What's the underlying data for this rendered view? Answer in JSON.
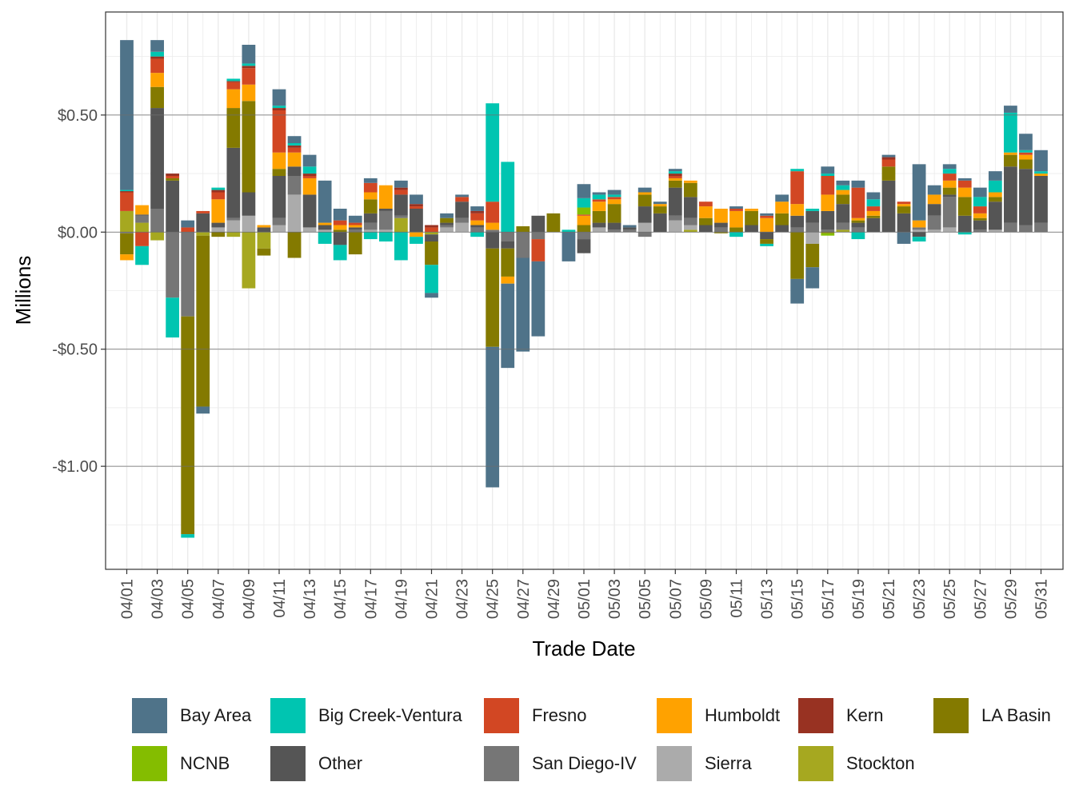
{
  "chart_data": {
    "type": "bar",
    "stacked": true,
    "title": "",
    "xlabel": "Trade Date",
    "ylabel": "Millions",
    "ylim": [
      -1.44,
      0.94
    ],
    "y_ticks": [
      0.5,
      0.0,
      -0.5,
      -1.0
    ],
    "y_tick_labels": [
      "$0.50",
      "$0.00",
      "-$0.50",
      "-$1.00"
    ],
    "grid": true,
    "legend_position": "bottom",
    "x_tick_labels": [
      "04/01",
      "04/03",
      "04/05",
      "04/07",
      "04/09",
      "04/11",
      "04/13",
      "04/15",
      "04/17",
      "04/19",
      "04/21",
      "04/23",
      "04/25",
      "04/27",
      "04/29",
      "05/01",
      "05/03",
      "05/05",
      "05/07",
      "05/09",
      "05/11",
      "05/13",
      "05/15",
      "05/17",
      "05/19",
      "05/21",
      "05/23",
      "05/25",
      "05/27",
      "05/29",
      "05/31"
    ],
    "categories": [
      "04/01",
      "04/02",
      "04/03",
      "04/04",
      "04/05",
      "04/06",
      "04/07",
      "04/08",
      "04/09",
      "04/10",
      "04/11",
      "04/12",
      "04/13",
      "04/14",
      "04/15",
      "04/16",
      "04/17",
      "04/18",
      "04/19",
      "04/20",
      "04/21",
      "04/22",
      "04/23",
      "04/24",
      "04/25",
      "04/26",
      "04/27",
      "04/28",
      "04/29",
      "04/30",
      "05/01",
      "05/02",
      "05/03",
      "05/04",
      "05/05",
      "05/06",
      "05/07",
      "05/08",
      "05/09",
      "05/10",
      "05/11",
      "05/12",
      "05/13",
      "05/14",
      "05/15",
      "05/16",
      "05/17",
      "05/18",
      "05/19",
      "05/20",
      "05/21",
      "05/22",
      "05/23",
      "05/24",
      "05/25",
      "05/26",
      "05/27",
      "05/28",
      "05/29",
      "05/30",
      "05/31"
    ],
    "series": [
      {
        "name": "Stockton",
        "color": "#A6A820",
        "values": [
          0.09,
          0.04,
          -0.035,
          0,
          0,
          -0.015,
          0,
          -0.02,
          -0.24,
          -0.07,
          0,
          0,
          0,
          0,
          0,
          0,
          0,
          0,
          0.06,
          0,
          -0.01,
          0,
          0,
          0,
          0,
          0,
          0,
          0,
          0,
          0,
          0,
          0,
          0,
          0,
          0,
          0,
          0,
          0.01,
          0,
          0,
          0,
          0,
          0,
          0,
          0,
          0,
          0,
          0.01,
          0,
          0,
          0,
          0,
          0,
          0,
          0,
          0,
          0,
          0,
          0,
          0,
          0
        ]
      },
      {
        "name": "Sierra",
        "color": "#ABABAB",
        "values": [
          0,
          0,
          0,
          0,
          0,
          0,
          0.02,
          0.05,
          0.07,
          0,
          0.03,
          0.16,
          0.02,
          0.01,
          0,
          0,
          0.01,
          0.01,
          0,
          0,
          0,
          0.02,
          0.04,
          0,
          0,
          0,
          0,
          0,
          0,
          0,
          0,
          0.02,
          0,
          0,
          0.04,
          0,
          0.05,
          0.02,
          0,
          0,
          0,
          0,
          0,
          0,
          0,
          -0.05,
          0,
          0,
          0,
          0,
          0,
          0,
          0.01,
          0.01,
          0.02,
          0,
          0,
          0.01,
          0,
          0,
          0
        ]
      },
      {
        "name": "San Diego-IV",
        "color": "#767676",
        "values": [
          -0.005,
          0.03,
          0.1,
          -0.28,
          -0.36,
          0,
          0,
          0.01,
          0,
          0,
          0.03,
          0.08,
          0,
          0,
          0,
          0.01,
          0.03,
          0.08,
          0.01,
          0,
          0,
          0.01,
          0.02,
          0.02,
          0.01,
          -0.04,
          -0.11,
          -0.03,
          0,
          0,
          -0.03,
          0,
          0.01,
          0.01,
          -0.02,
          0,
          0.02,
          0.03,
          0,
          0.02,
          0,
          0,
          0,
          0,
          0.02,
          0.04,
          0.01,
          0.03,
          0.02,
          0,
          0,
          0,
          0.01,
          0.06,
          0.13,
          0,
          0.01,
          0,
          0.04,
          0.03,
          0.04
        ]
      },
      {
        "name": "Other",
        "color": "#555555",
        "values": [
          0,
          0.005,
          0.43,
          0.22,
          0,
          0.08,
          0.02,
          0.3,
          0.1,
          0.02,
          0.18,
          0.04,
          0.14,
          0.02,
          -0.055,
          0.01,
          0.04,
          0.01,
          0.09,
          0.1,
          -0.03,
          0.01,
          0.07,
          0.01,
          -0.07,
          -0.03,
          0,
          0.07,
          0,
          0,
          -0.06,
          0.02,
          0.03,
          0.01,
          0.07,
          0.08,
          0.12,
          0.09,
          0.03,
          0.02,
          0,
          0.03,
          -0.03,
          0.03,
          0.05,
          0.05,
          0.08,
          0.08,
          0.02,
          0.06,
          0.22,
          0.08,
          -0.02,
          0.05,
          0.01,
          0.07,
          0.04,
          0.12,
          0.24,
          0.24,
          0.2
        ]
      },
      {
        "name": "LA Basin",
        "color": "#847A00",
        "values": [
          -0.09,
          0,
          0.09,
          0.01,
          -0.93,
          -0.73,
          -0.02,
          0.17,
          0.39,
          -0.03,
          0.03,
          -0.11,
          0,
          0,
          0.01,
          -0.095,
          0.06,
          0,
          0,
          0,
          -0.1,
          0.02,
          0,
          0,
          -0.42,
          -0.12,
          0.025,
          0,
          0.08,
          0,
          0.03,
          0.05,
          0.08,
          0,
          0.05,
          0.03,
          0.03,
          0.06,
          0.03,
          -0.005,
          0.02,
          0.06,
          -0.02,
          0.05,
          -0.2,
          -0.1,
          -0.005,
          0.04,
          0.01,
          0.01,
          0.06,
          0.03,
          0,
          0,
          0.03,
          0.08,
          0.01,
          0.02,
          0.05,
          0.04,
          0
        ]
      },
      {
        "name": "Humboldt",
        "color": "#FFA200",
        "values": [
          -0.025,
          0.04,
          0.06,
          0,
          0,
          0,
          0.1,
          0.08,
          0.07,
          0.01,
          0.07,
          0.06,
          0.07,
          0.01,
          0.02,
          0.01,
          0.03,
          0.1,
          0,
          -0.02,
          0,
          0,
          0,
          0.02,
          0.03,
          -0.03,
          0,
          0,
          0,
          0,
          0.04,
          0.04,
          0.02,
          0,
          0.01,
          0.01,
          0.01,
          0.01,
          0.05,
          0.06,
          0.07,
          0.01,
          0.06,
          0.05,
          0.05,
          0,
          0.07,
          0.02,
          0.01,
          0.02,
          0,
          0.01,
          0.03,
          0.04,
          0.03,
          0.04,
          0.02,
          0.02,
          0.01,
          0.02,
          0.01
        ]
      },
      {
        "name": "Fresno",
        "color": "#D24723",
        "values": [
          0.08,
          -0.06,
          0.06,
          0.01,
          0.02,
          0.01,
          0.03,
          0.03,
          0.07,
          0,
          0.18,
          0.02,
          0.01,
          0,
          0.02,
          0.01,
          0.04,
          0,
          0.02,
          0.01,
          0.02,
          0,
          0.02,
          0.03,
          0.09,
          0,
          0,
          -0.095,
          0,
          0,
          0.005,
          0.01,
          0.01,
          0,
          0,
          0,
          0.01,
          0,
          0.02,
          0,
          0.01,
          0,
          0.01,
          0,
          0.14,
          0,
          0.08,
          0,
          0.13,
          0.02,
          0.03,
          0.01,
          0,
          0,
          0.03,
          0.03,
          0.03,
          0,
          0,
          0.01,
          0
        ]
      },
      {
        "name": "Kern",
        "color": "#983222",
        "values": [
          0.005,
          0,
          0.01,
          0.01,
          0,
          0,
          0.01,
          0.005,
          0.01,
          0,
          0.01,
          0.01,
          0.01,
          0,
          0,
          0,
          0,
          0,
          0.01,
          0.01,
          0.01,
          0,
          0,
          0.01,
          0,
          0,
          0,
          0,
          0,
          0,
          0,
          0,
          0,
          0,
          0,
          0,
          0.01,
          0,
          0,
          0,
          0,
          0,
          0,
          0,
          0,
          0,
          0,
          0,
          0,
          0,
          0.01,
          0,
          0,
          0,
          0,
          0,
          0,
          0,
          0,
          0,
          0
        ]
      },
      {
        "name": "NCNB",
        "color": "#84BD00",
        "values": [
          0,
          0,
          0,
          0,
          0,
          0,
          0,
          0,
          0,
          0,
          0,
          0,
          0,
          0,
          0,
          0,
          0,
          0,
          0,
          0,
          0,
          0,
          0,
          0,
          0,
          0,
          0,
          0,
          0,
          0,
          0.03,
          0,
          0,
          0,
          0,
          0,
          0,
          0,
          0,
          0,
          0,
          0,
          0,
          0,
          0,
          0,
          -0.01,
          0,
          0,
          0,
          0,
          0,
          0,
          0,
          0,
          0,
          0,
          0,
          0,
          0,
          0
        ]
      },
      {
        "name": "Big Creek-Ventura",
        "color": "#00C5B1",
        "values": [
          0.005,
          -0.08,
          0.02,
          -0.17,
          -0.015,
          0,
          0.01,
          0.01,
          0.01,
          0,
          0.01,
          0.01,
          0.03,
          -0.05,
          -0.065,
          0,
          -0.03,
          -0.04,
          -0.12,
          -0.03,
          -0.12,
          0,
          0,
          -0.02,
          0.42,
          0.3,
          0,
          0,
          0,
          0.01,
          0.04,
          0.02,
          0.01,
          0,
          0,
          0,
          0.01,
          0,
          0,
          0,
          -0.02,
          0,
          -0.01,
          0,
          0.01,
          0.01,
          0.01,
          0.02,
          -0.03,
          0.03,
          0,
          0,
          -0.02,
          0,
          0.02,
          -0.01,
          0.04,
          0.05,
          0.17,
          0.01,
          0.01
        ]
      },
      {
        "name": "Bay Area",
        "color": "#4F7389",
        "values": [
          0.64,
          0,
          0.05,
          0,
          0.03,
          -0.03,
          0,
          0,
          0.08,
          0,
          0.07,
          0.03,
          0.05,
          0.18,
          0.05,
          0.03,
          0.02,
          0,
          0.03,
          0.04,
          -0.02,
          0.02,
          0.01,
          0.02,
          -0.6,
          -0.36,
          -0.4,
          -0.32,
          0,
          -0.125,
          0.06,
          0.01,
          0.02,
          0.01,
          0.02,
          0.01,
          0.01,
          0,
          0,
          0,
          0.01,
          0,
          0.01,
          0.03,
          -0.105,
          -0.09,
          0.03,
          0.02,
          0.03,
          0.03,
          0.01,
          -0.05,
          0.24,
          0.04,
          0.02,
          0.01,
          0.04,
          0.04,
          0.03,
          0.07,
          0.09
        ]
      }
    ]
  }
}
